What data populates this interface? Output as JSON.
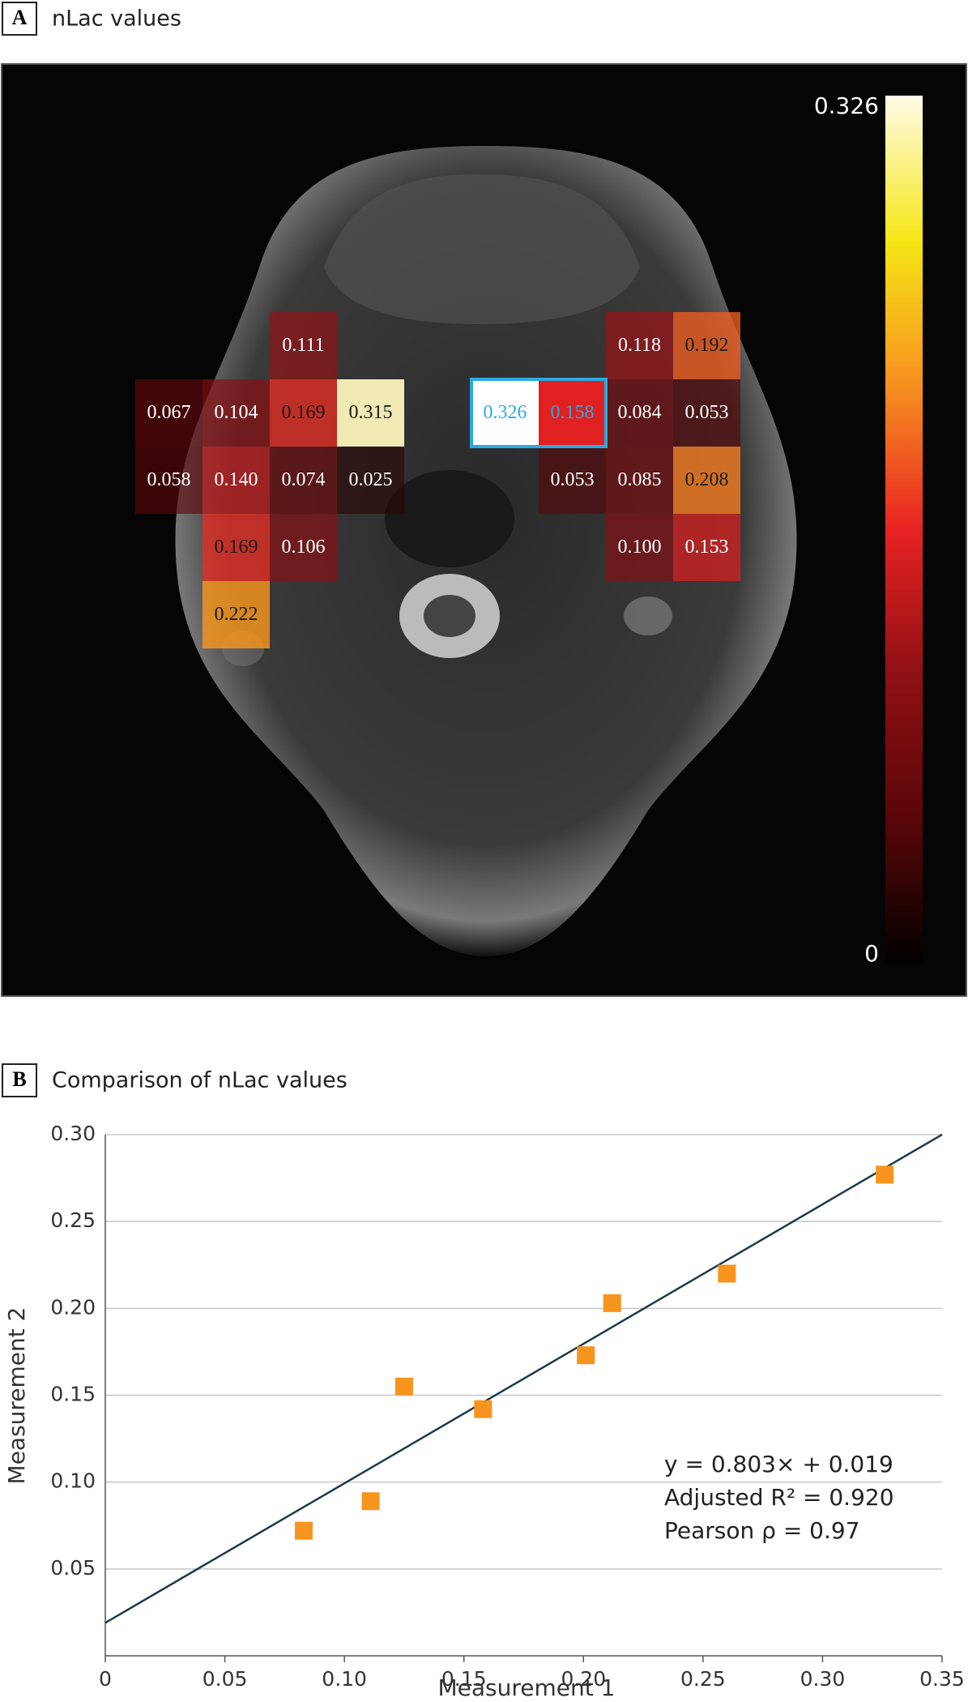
{
  "chart_data": [
    {
      "type": "heatmap",
      "panel": "A",
      "title": "nLac values",
      "values": [
        [
          null,
          null,
          0.111,
          null,
          null,
          null,
          null,
          0.118,
          0.192
        ],
        [
          0.067,
          0.104,
          0.169,
          0.315,
          null,
          0.326,
          0.158,
          0.084,
          0.053
        ],
        [
          0.058,
          0.14,
          0.074,
          0.025,
          null,
          null,
          0.053,
          0.085,
          0.208
        ],
        [
          null,
          0.169,
          0.106,
          null,
          null,
          null,
          null,
          0.1,
          0.153
        ],
        [
          null,
          0.222,
          null,
          null,
          null,
          null,
          null,
          null,
          null
        ]
      ],
      "value_labels": [
        [
          null,
          null,
          "0.111",
          null,
          null,
          null,
          null,
          "0.118",
          "0.192"
        ],
        [
          "0.067",
          "0.104",
          "0.169",
          "0.315",
          null,
          "0.326",
          "0.158",
          "0.084",
          "0.053"
        ],
        [
          "0.058",
          "0.140",
          "0.074",
          "0.025",
          null,
          null,
          "0.053",
          "0.085",
          "0.208"
        ],
        [
          null,
          "0.169",
          "0.106",
          null,
          null,
          null,
          null,
          "0.100",
          "0.153"
        ],
        [
          null,
          "0.222",
          null,
          null,
          null,
          null,
          null,
          null,
          null
        ]
      ],
      "zlim": [
        0,
        0.326
      ],
      "zticks": [
        0.326,
        0
      ],
      "colormap": [
        "#000000",
        "#5a0608",
        "#8e1014",
        "#e82222",
        "#f6901f",
        "#f5e614",
        "#fffbe8"
      ],
      "highlight": {
        "row": 1,
        "cols": [
          5,
          6
        ],
        "color": "#29abe2"
      }
    },
    {
      "type": "scatter",
      "panel": "B",
      "title": "Comparison of nLac values",
      "x_label": "Measurement 1",
      "y_label": "Measurement 2",
      "x": [
        0.083,
        0.111,
        0.125,
        0.158,
        0.201,
        0.212,
        0.26,
        0.326
      ],
      "values": [
        0.072,
        0.089,
        0.155,
        0.142,
        0.173,
        0.203,
        0.22,
        0.277
      ],
      "color": "#f7941d",
      "fit": {
        "slope": 0.803,
        "intercept": 0.019,
        "color": "#1d3a4a"
      },
      "xlim": [
        0,
        0.35
      ],
      "ylim": [
        0,
        0.3
      ],
      "xticks": [
        0,
        0.05,
        {
          "value": 0.1,
          "label": "0.10"
        },
        0.15,
        {
          "value": 0.2,
          "label": "0.20"
        },
        0.25,
        {
          "value": 0.3,
          "label": "0.30"
        },
        0.35
      ],
      "yticks": [
        0.05,
        {
          "value": 0.1,
          "label": "0.10"
        },
        0.15,
        {
          "value": 0.2,
          "label": "0.20"
        },
        0.25,
        {
          "value": 0.3,
          "label": "0.30"
        }
      ],
      "grid": true,
      "annotations": [
        "y = 0.803× + 0.019",
        "Adjusted R² = 0.920",
        "Pearson ρ = 0.97"
      ]
    }
  ]
}
